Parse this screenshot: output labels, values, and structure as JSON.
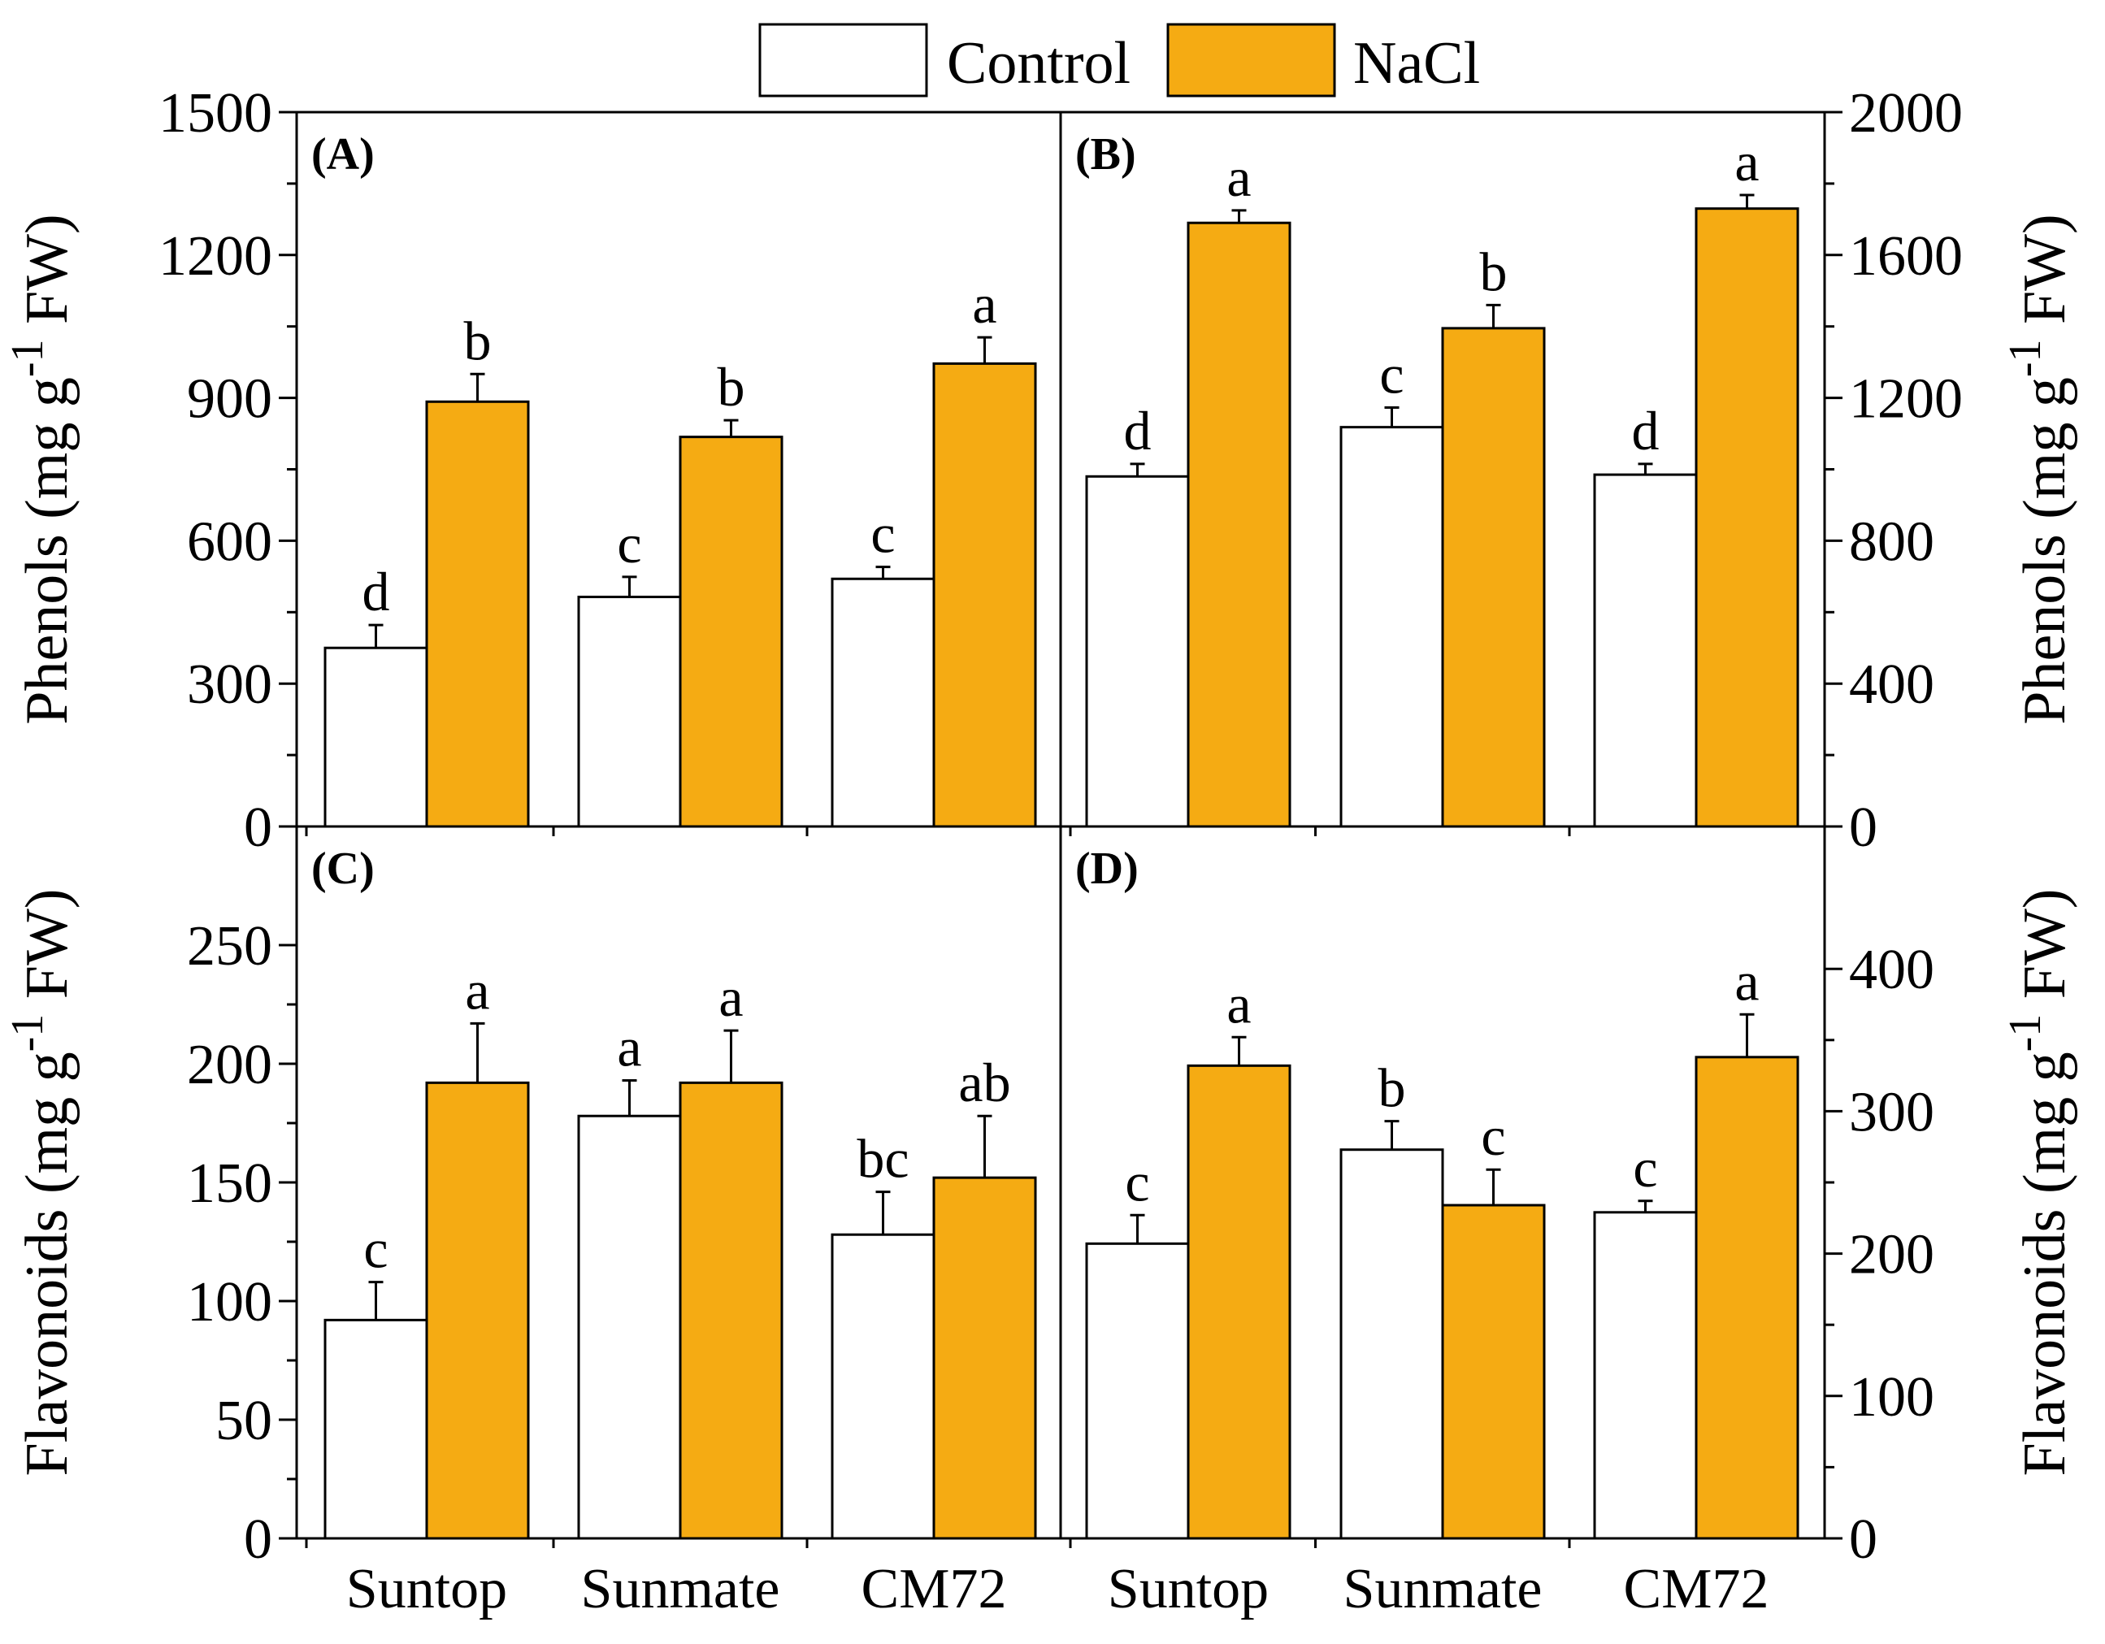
{
  "chart_data": {
    "type": "bar",
    "legend": {
      "position": "top-center",
      "entries": [
        {
          "name": "Control",
          "color": "#ffffff"
        },
        {
          "name": "NaCl",
          "color": "#f5ab13"
        }
      ]
    },
    "categories": [
      "Suntop",
      "Sunmate",
      "CM72"
    ],
    "panels": [
      {
        "label": "(A)",
        "ylabel": "Phenols (mg g",
        "ylabel_sup": "-1",
        "ylabel_tail": " FW)",
        "ylim": [
          0,
          1500
        ],
        "yticks": [
          0,
          300,
          600,
          900,
          1200,
          1500
        ],
        "series": [
          {
            "name": "Control",
            "values": [
              375,
              482,
              520
            ],
            "errors": [
              48,
              42,
              25
            ],
            "letters": [
              "d",
              "c",
              "c"
            ]
          },
          {
            "name": "NaCl",
            "values": [
              892,
              818,
              972
            ],
            "errors": [
              58,
              35,
              55
            ],
            "letters": [
              "b",
              "b",
              "a"
            ]
          }
        ]
      },
      {
        "label": "(B)",
        "ylabel": "Phenols (mg g",
        "ylabel_sup": "-1",
        "ylabel_tail": " FW)",
        "ylim": [
          0,
          2000
        ],
        "yticks": [
          0,
          400,
          800,
          1200,
          1600,
          2000
        ],
        "series": [
          {
            "name": "Control",
            "values": [
              980,
              1118,
              985
            ],
            "errors": [
              35,
              55,
              30
            ],
            "letters": [
              "d",
              "c",
              "d"
            ]
          },
          {
            "name": "NaCl",
            "values": [
              1690,
              1395,
              1730
            ],
            "errors": [
              35,
              65,
              38
            ],
            "letters": [
              "a",
              "b",
              "a"
            ]
          }
        ]
      },
      {
        "label": "(C)",
        "ylabel": "Flavonoids (mg g",
        "ylabel_sup": "-1",
        "ylabel_tail": " FW)",
        "ylim": [
          0,
          300
        ],
        "yticks": [
          0,
          50,
          100,
          150,
          200,
          250
        ],
        "series": [
          {
            "name": "Control",
            "values": [
              92,
              178,
              128
            ],
            "errors": [
              16,
              15,
              18
            ],
            "letters": [
              "c",
              "a",
              "bc"
            ]
          },
          {
            "name": "NaCl",
            "values": [
              192,
              192,
              152
            ],
            "errors": [
              25,
              22,
              26
            ],
            "letters": [
              "a",
              "a",
              "ab"
            ]
          }
        ]
      },
      {
        "label": "(D)",
        "ylabel": "Flavonoids (mg g",
        "ylabel_sup": "-1",
        "ylabel_tail": " FW)",
        "ylim": [
          0,
          500
        ],
        "yticks": [
          0,
          100,
          200,
          300,
          400
        ],
        "series": [
          {
            "name": "Control",
            "values": [
              207,
              273,
              229
            ],
            "errors": [
              20,
              20,
              8
            ],
            "letters": [
              "c",
              "b",
              "c"
            ]
          },
          {
            "name": "NaCl",
            "values": [
              332,
              234,
              338
            ],
            "errors": [
              20,
              25,
              30
            ],
            "letters": [
              "a",
              "c",
              "a"
            ]
          }
        ]
      }
    ]
  }
}
